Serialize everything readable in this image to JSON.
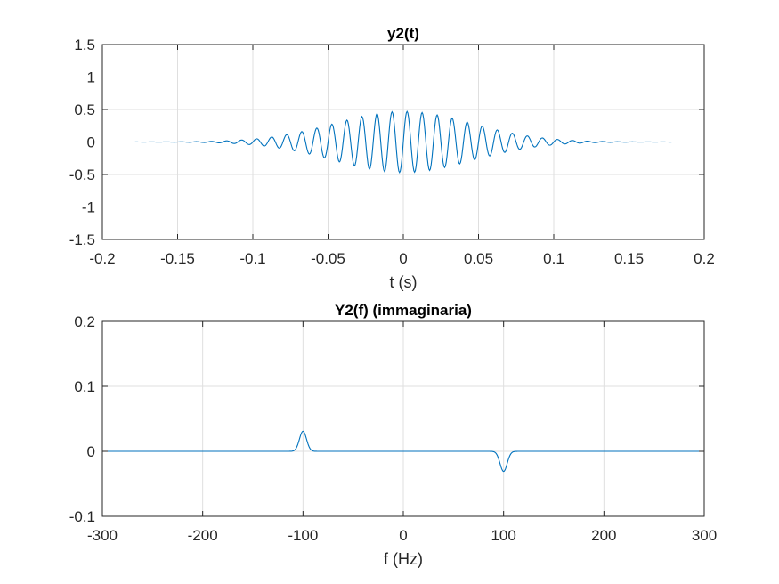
{
  "colors": {
    "line": "#0072BD",
    "grid": "#dfdfdf",
    "axis": "#262626",
    "background": "#ffffff"
  },
  "chart_data": [
    {
      "type": "line",
      "title": "y2(t)",
      "xlabel": "t (s)",
      "ylabel": "",
      "xlim": [
        -0.2,
        0.2
      ],
      "ylim": [
        -1.5,
        1.5
      ],
      "xticks": [
        -0.2,
        -0.15,
        -0.1,
        -0.05,
        0,
        0.05,
        0.1,
        0.15,
        0.2
      ],
      "xtick_labels": [
        "-0.2",
        "-0.15",
        "-0.1",
        "-0.05",
        "0",
        "0.05",
        "0.1",
        "0.15",
        "0.2"
      ],
      "yticks": [
        -1.5,
        -1,
        -0.5,
        0,
        0.5,
        1,
        1.5
      ],
      "ytick_labels": [
        "-1.5",
        "-1",
        "-0.5",
        "0",
        "0.5",
        "1",
        "1.5"
      ],
      "grid": true,
      "series": [
        {
          "x_range": [
            -0.2,
            0.2
          ],
          "samples": 801,
          "model": "a*sin(2*pi*f0*t)*exp(-(t/s)^2)",
          "a": 0.47,
          "f0": 100,
          "s": 0.065
        }
      ]
    },
    {
      "type": "line",
      "title": "Y2(f) (immaginaria)",
      "xlabel": "f (Hz)",
      "ylabel": "",
      "xlim": [
        -300,
        300
      ],
      "ylim": [
        -0.1,
        0.2
      ],
      "xticks": [
        -300,
        -200,
        -100,
        0,
        100,
        200,
        300
      ],
      "xtick_labels": [
        "-300",
        "-200",
        "-100",
        "0",
        "100",
        "200",
        "300"
      ],
      "yticks": [
        -0.1,
        0,
        0.1,
        0.2
      ],
      "ytick_labels": [
        "-0.1",
        "0",
        "0.1",
        "0.2"
      ],
      "grid": true,
      "series": [
        {
          "x_range": [
            -300,
            300
          ],
          "samples": 1201,
          "model": "a*(exp(-((f+f0)/w)^2) - exp(-((f-f0)/w)^2))",
          "a": 0.031,
          "f0": 100,
          "w": 5
        }
      ]
    }
  ]
}
